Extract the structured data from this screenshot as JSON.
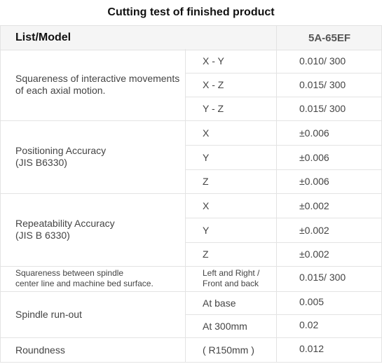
{
  "title": "Cutting test of finished product",
  "header": {
    "list_label": "List/Model",
    "model": "5A-65EF"
  },
  "groups": [
    {
      "category": "Squareness of interactive movements of each axial motion.",
      "rows": [
        {
          "item": "X - Y",
          "value": "0.010/ 300"
        },
        {
          "item": "X - Z",
          "value": "0.015/ 300"
        },
        {
          "item": "Y - Z",
          "value": "0.015/ 300"
        }
      ]
    },
    {
      "category": "Positioning Accuracy\n(JIS B6330)",
      "rows": [
        {
          "item": "X",
          "value": "±0.006"
        },
        {
          "item": "Y",
          "value": "±0.006"
        },
        {
          "item": "Z",
          "value": "±0.006"
        }
      ]
    },
    {
      "category": "Repeatability Accuracy\n(JIS B 6330)",
      "rows": [
        {
          "item": "X",
          "value": "±0.002"
        },
        {
          "item": "Y",
          "value": "±0.002"
        },
        {
          "item": "Z",
          "value": "±0.002"
        }
      ]
    },
    {
      "category": "Squareness between spindle\ncenter line and machine bed surface.",
      "rows": [
        {
          "item": "Left and Right /\nFront and back",
          "value": "0.015/ 300"
        }
      ]
    },
    {
      "category": "Spindle run-out",
      "rows": [
        {
          "item": "At base",
          "value": "0.005"
        },
        {
          "item": "At  300mm",
          "value": "0.02"
        }
      ]
    },
    {
      "category": "Roundness",
      "rows": [
        {
          "item": "( R150mm )",
          "value": "0.012"
        }
      ]
    }
  ]
}
